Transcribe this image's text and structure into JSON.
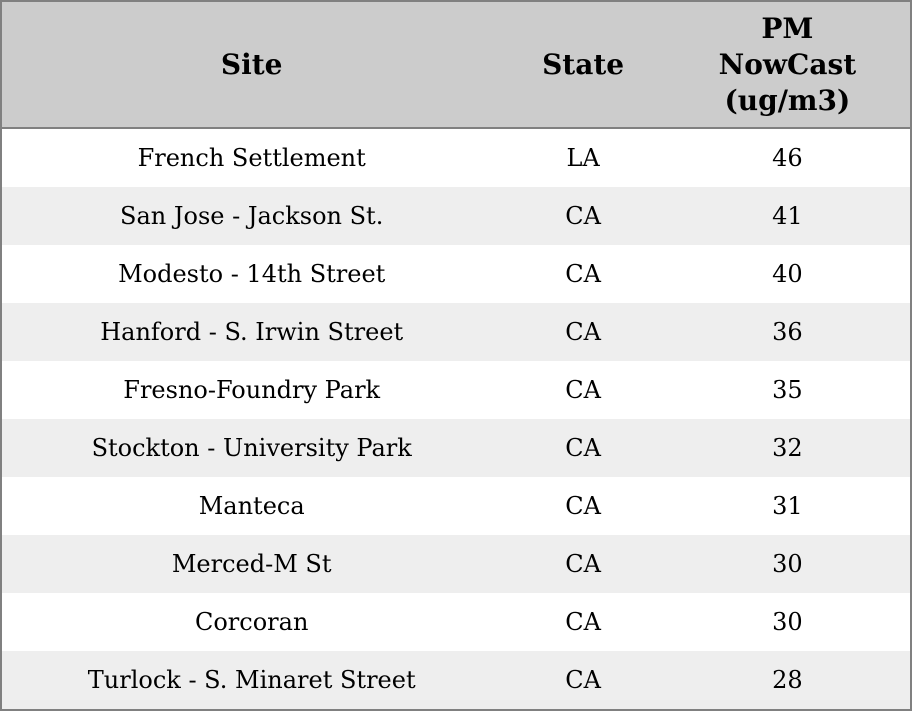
{
  "colors": {
    "header_bg": "#cccccc",
    "border": "#808080",
    "row_stripe_bg": "#eeeeee",
    "row_bg": "#ffffff",
    "text": "#000000"
  },
  "table": {
    "columns": [
      {
        "label": "Site"
      },
      {
        "label": "State"
      },
      {
        "label": "PM\nNowCast\n(ug/m3)"
      }
    ],
    "rows": [
      {
        "site": "French Settlement",
        "state": "LA",
        "pm_nowcast": "46"
      },
      {
        "site": "San Jose - Jackson St.",
        "state": "CA",
        "pm_nowcast": "41"
      },
      {
        "site": "Modesto - 14th Street",
        "state": "CA",
        "pm_nowcast": "40"
      },
      {
        "site": "Hanford - S. Irwin Street",
        "state": "CA",
        "pm_nowcast": "36"
      },
      {
        "site": "Fresno-Foundry Park",
        "state": "CA",
        "pm_nowcast": "35"
      },
      {
        "site": "Stockton - University Park",
        "state": "CA",
        "pm_nowcast": "32"
      },
      {
        "site": "Manteca",
        "state": "CA",
        "pm_nowcast": "31"
      },
      {
        "site": "Merced-M St",
        "state": "CA",
        "pm_nowcast": "30"
      },
      {
        "site": "Corcoran",
        "state": "CA",
        "pm_nowcast": "30"
      },
      {
        "site": "Turlock - S. Minaret Street",
        "state": "CA",
        "pm_nowcast": "28"
      }
    ]
  },
  "chart_data": {
    "type": "table",
    "title": "",
    "columns": [
      "Site",
      "State",
      "PM NowCast (ug/m3)"
    ],
    "rows": [
      [
        "French Settlement",
        "LA",
        46
      ],
      [
        "San Jose - Jackson St.",
        "CA",
        41
      ],
      [
        "Modesto - 14th Street",
        "CA",
        40
      ],
      [
        "Hanford - S. Irwin Street",
        "CA",
        36
      ],
      [
        "Fresno-Foundry Park",
        "CA",
        35
      ],
      [
        "Stockton - University Park",
        "CA",
        32
      ],
      [
        "Manteca",
        "CA",
        31
      ],
      [
        "Merced-M St",
        "CA",
        30
      ],
      [
        "Corcoran",
        "CA",
        30
      ],
      [
        "Turlock - S. Minaret Street",
        "CA",
        28
      ]
    ],
    "layout_hints": {
      "header_bg": "#cccccc",
      "striped_rows": true,
      "stripe_color": "#eeeeee",
      "border_color": "#808080",
      "text_align": "center"
    }
  }
}
